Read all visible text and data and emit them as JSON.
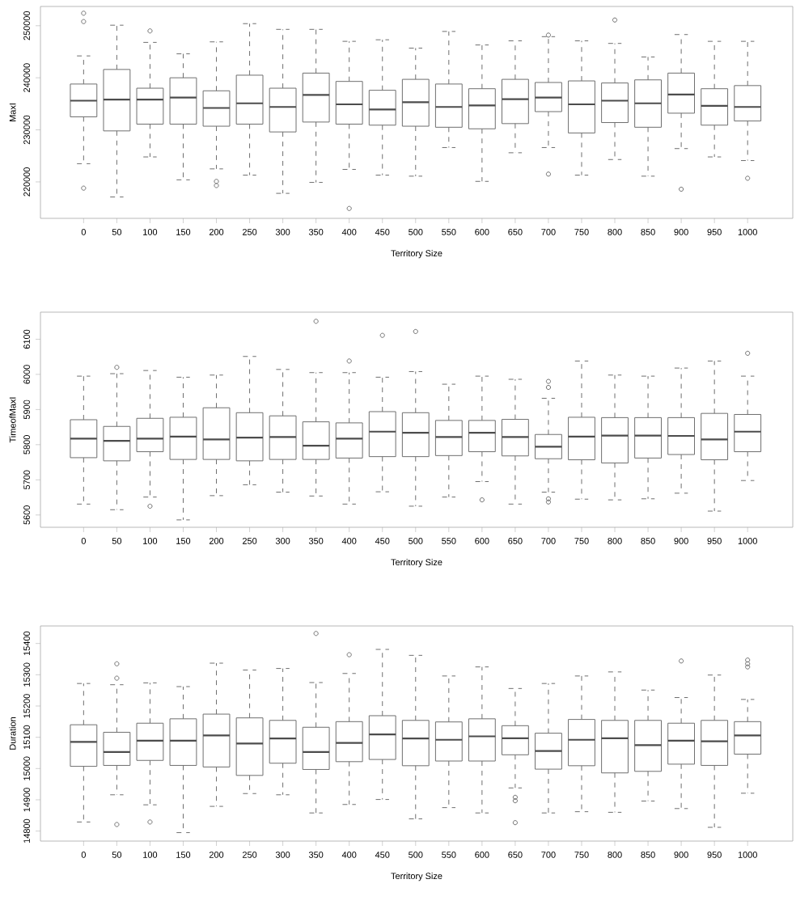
{
  "chart_data": [
    {
      "type": "box",
      "xlabel": "Territory Size",
      "ylabel": "MaxI",
      "color": "#6e6e6e",
      "categories": [
        "0",
        "50",
        "100",
        "150",
        "200",
        "250",
        "300",
        "350",
        "400",
        "450",
        "500",
        "550",
        "600",
        "650",
        "700",
        "750",
        "800",
        "850",
        "900",
        "950",
        "1000"
      ],
      "ylim": [
        213000,
        253700
      ],
      "yticks": [
        220000,
        230000,
        240000,
        250000
      ],
      "boxes": [
        {
          "low": 223500,
          "q1": 232500,
          "median": 235600,
          "q3": 238800,
          "high": 244200,
          "outliers": [
            252400,
            250800,
            218800
          ]
        },
        {
          "low": 217100,
          "q1": 229800,
          "median": 235800,
          "q3": 241600,
          "high": 250100
        },
        {
          "low": 224800,
          "q1": 231100,
          "median": 235800,
          "q3": 238000,
          "high": 246800,
          "outliers": [
            249000
          ]
        },
        {
          "low": 220400,
          "q1": 231100,
          "median": 236200,
          "q3": 240000,
          "high": 244600
        },
        {
          "low": 222500,
          "q1": 230700,
          "median": 234200,
          "q3": 237500,
          "high": 246900,
          "outliers": [
            220100,
            219300
          ]
        },
        {
          "low": 221300,
          "q1": 231100,
          "median": 235100,
          "q3": 240500,
          "high": 250400
        },
        {
          "low": 217800,
          "q1": 229600,
          "median": 234400,
          "q3": 238000,
          "high": 249300
        },
        {
          "low": 219900,
          "q1": 231500,
          "median": 236700,
          "q3": 240900,
          "high": 249300
        },
        {
          "low": 222400,
          "q1": 231100,
          "median": 234900,
          "q3": 239300,
          "high": 247000,
          "outliers": [
            214900
          ]
        },
        {
          "low": 221300,
          "q1": 230900,
          "median": 233900,
          "q3": 237600,
          "high": 247300
        },
        {
          "low": 221100,
          "q1": 230700,
          "median": 235300,
          "q3": 239700,
          "high": 245700
        },
        {
          "low": 226600,
          "q1": 230500,
          "median": 234400,
          "q3": 238800,
          "high": 248900
        },
        {
          "low": 220100,
          "q1": 230200,
          "median": 234700,
          "q3": 237900,
          "high": 246300
        },
        {
          "low": 225600,
          "q1": 231200,
          "median": 235900,
          "q3": 239700,
          "high": 247100
        },
        {
          "low": 226600,
          "q1": 233500,
          "median": 236200,
          "q3": 239100,
          "high": 247900,
          "outliers": [
            248200,
            221500
          ]
        },
        {
          "low": 221300,
          "q1": 229400,
          "median": 234900,
          "q3": 239400,
          "high": 247100
        },
        {
          "low": 224300,
          "q1": 231400,
          "median": 235600,
          "q3": 239000,
          "high": 246600,
          "outliers": [
            251100
          ]
        },
        {
          "low": 221100,
          "q1": 230500,
          "median": 235100,
          "q3": 239600,
          "high": 244000
        },
        {
          "low": 226400,
          "q1": 233200,
          "median": 236800,
          "q3": 240900,
          "high": 248300,
          "outliers": [
            218600
          ]
        },
        {
          "low": 224800,
          "q1": 230900,
          "median": 234600,
          "q3": 237900,
          "high": 247000
        },
        {
          "low": 224100,
          "q1": 231700,
          "median": 234400,
          "q3": 238500,
          "high": 247000,
          "outliers": [
            220700
          ]
        }
      ]
    },
    {
      "type": "box",
      "xlabel": "Territory Size",
      "ylabel": "TimeofMaxI",
      "color": "#6e6e6e",
      "categories": [
        "0",
        "50",
        "100",
        "150",
        "200",
        "250",
        "300",
        "350",
        "400",
        "450",
        "500",
        "550",
        "600",
        "650",
        "700",
        "750",
        "800",
        "850",
        "900",
        "950",
        "1000"
      ],
      "ylim": [
        5565,
        6177
      ],
      "yticks": [
        5600,
        5700,
        5800,
        5900,
        6000,
        6100
      ],
      "boxes": [
        {
          "low": 5631,
          "q1": 5763,
          "median": 5817,
          "q3": 5871,
          "high": 5995
        },
        {
          "low": 5615,
          "q1": 5754,
          "median": 5811,
          "q3": 5852,
          "high": 6002,
          "outliers": [
            6020
          ]
        },
        {
          "low": 5651,
          "q1": 5780,
          "median": 5817,
          "q3": 5875,
          "high": 6011,
          "outliers": [
            5625
          ]
        },
        {
          "low": 5586,
          "q1": 5758,
          "median": 5823,
          "q3": 5878,
          "high": 5992
        },
        {
          "low": 5655,
          "q1": 5758,
          "median": 5815,
          "q3": 5905,
          "high": 5998
        },
        {
          "low": 5686,
          "q1": 5754,
          "median": 5820,
          "q3": 5891,
          "high": 6051
        },
        {
          "low": 5665,
          "q1": 5758,
          "median": 5822,
          "q3": 5882,
          "high": 6014
        },
        {
          "low": 5654,
          "q1": 5758,
          "median": 5797,
          "q3": 5865,
          "high": 6005,
          "outliers": [
            6151
          ]
        },
        {
          "low": 5631,
          "q1": 5762,
          "median": 5817,
          "q3": 5862,
          "high": 6005,
          "outliers": [
            6038
          ]
        },
        {
          "low": 5666,
          "q1": 5766,
          "median": 5837,
          "q3": 5894,
          "high": 5992,
          "outliers": [
            6111
          ]
        },
        {
          "low": 5625,
          "q1": 5766,
          "median": 5834,
          "q3": 5891,
          "high": 6008,
          "outliers": [
            6122
          ]
        },
        {
          "low": 5651,
          "q1": 5769,
          "median": 5822,
          "q3": 5869,
          "high": 5972
        },
        {
          "low": 5695,
          "q1": 5780,
          "median": 5834,
          "q3": 5869,
          "high": 5995,
          "outliers": [
            5643
          ]
        },
        {
          "low": 5631,
          "q1": 5768,
          "median": 5822,
          "q3": 5872,
          "high": 5986
        },
        {
          "low": 5665,
          "q1": 5760,
          "median": 5794,
          "q3": 5829,
          "high": 5932,
          "outliers": [
            5980,
            5963,
            5646,
            5637
          ]
        },
        {
          "low": 5645,
          "q1": 5757,
          "median": 5823,
          "q3": 5878,
          "high": 6038
        },
        {
          "low": 5643,
          "q1": 5748,
          "median": 5826,
          "q3": 5877,
          "high": 5998
        },
        {
          "low": 5646,
          "q1": 5762,
          "median": 5826,
          "q3": 5877,
          "high": 5995
        },
        {
          "low": 5662,
          "q1": 5772,
          "median": 5825,
          "q3": 5877,
          "high": 6018
        },
        {
          "low": 5611,
          "q1": 5757,
          "median": 5815,
          "q3": 5889,
          "high": 6038
        },
        {
          "low": 5698,
          "q1": 5780,
          "median": 5837,
          "q3": 5886,
          "high": 5995,
          "outliers": [
            6060
          ]
        }
      ]
    },
    {
      "type": "box",
      "xlabel": "Territory Size",
      "ylabel": "Duration",
      "color": "#6e6e6e",
      "categories": [
        "0",
        "50",
        "100",
        "150",
        "200",
        "250",
        "300",
        "350",
        "400",
        "450",
        "500",
        "550",
        "600",
        "650",
        "700",
        "750",
        "800",
        "850",
        "900",
        "950",
        "1000"
      ],
      "ylim": [
        14768,
        15456
      ],
      "yticks": [
        14800,
        14900,
        15000,
        15100,
        15200,
        15300,
        15400
      ],
      "boxes": [
        {
          "low": 14829,
          "q1": 15007,
          "median": 15085,
          "q3": 15140,
          "high": 15272
        },
        {
          "low": 14916,
          "q1": 15010,
          "median": 15053,
          "q3": 15116,
          "high": 15268,
          "outliers": [
            15335,
            15289,
            14821
          ]
        },
        {
          "low": 14884,
          "q1": 15026,
          "median": 15089,
          "q3": 15145,
          "high": 15274,
          "outliers": [
            14829
          ]
        },
        {
          "low": 14795,
          "q1": 15010,
          "median": 15089,
          "q3": 15159,
          "high": 15262
        },
        {
          "low": 14879,
          "q1": 15005,
          "median": 15106,
          "q3": 15174,
          "high": 15337
        },
        {
          "low": 14920,
          "q1": 14978,
          "median": 15080,
          "q3": 15162,
          "high": 15315
        },
        {
          "low": 14916,
          "q1": 15017,
          "median": 15096,
          "q3": 15154,
          "high": 15320
        },
        {
          "low": 14858,
          "q1": 14997,
          "median": 15053,
          "q3": 15132,
          "high": 15275,
          "outliers": [
            15432
          ]
        },
        {
          "low": 14885,
          "q1": 15022,
          "median": 15082,
          "q3": 15150,
          "high": 15304,
          "outliers": [
            15364
          ]
        },
        {
          "low": 14901,
          "q1": 15029,
          "median": 15109,
          "q3": 15169,
          "high": 15381
        },
        {
          "low": 14839,
          "q1": 15009,
          "median": 15096,
          "q3": 15154,
          "high": 15362
        },
        {
          "low": 14875,
          "q1": 15024,
          "median": 15092,
          "q3": 15149,
          "high": 15296
        },
        {
          "low": 14858,
          "q1": 15024,
          "median": 15103,
          "q3": 15159,
          "high": 15325
        },
        {
          "low": 14938,
          "q1": 15044,
          "median": 15097,
          "q3": 15137,
          "high": 15256,
          "outliers": [
            14908,
            14897,
            14827
          ]
        },
        {
          "low": 14858,
          "q1": 14998,
          "median": 15056,
          "q3": 15113,
          "high": 15272
        },
        {
          "low": 14862,
          "q1": 15009,
          "median": 15092,
          "q3": 15157,
          "high": 15296
        },
        {
          "low": 14860,
          "q1": 14986,
          "median": 15097,
          "q3": 15154,
          "high": 15309
        },
        {
          "low": 14896,
          "q1": 14991,
          "median": 15075,
          "q3": 15154,
          "high": 15251
        },
        {
          "low": 14872,
          "q1": 15014,
          "median": 15089,
          "q3": 15145,
          "high": 15227,
          "outliers": [
            15344
          ]
        },
        {
          "low": 14812,
          "q1": 15010,
          "median": 15087,
          "q3": 15154,
          "high": 15299
        },
        {
          "low": 14921,
          "q1": 15046,
          "median": 15106,
          "q3": 15150,
          "high": 15221,
          "outliers": [
            15347,
            15335,
            15325
          ]
        }
      ]
    }
  ]
}
